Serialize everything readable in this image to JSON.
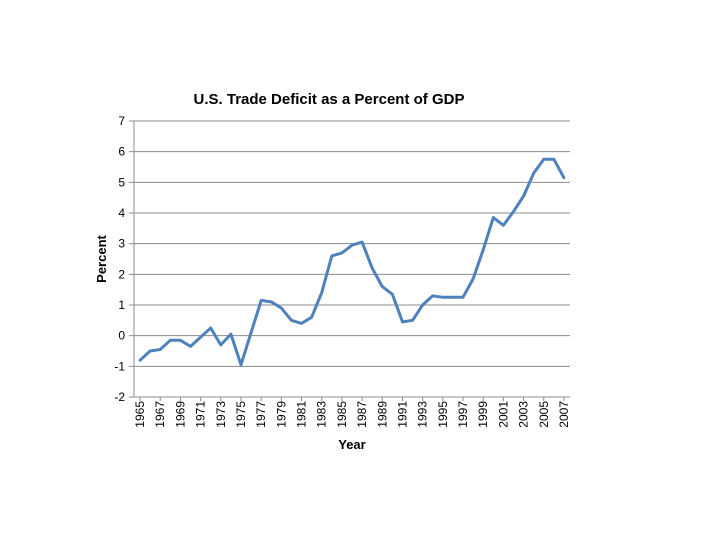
{
  "chart_data": {
    "type": "line",
    "title": "U.S. Trade Deficit as a Percent of GDP",
    "xlabel": "Year",
    "ylabel": "Percent",
    "ylim": [
      -2,
      7
    ],
    "yticks": [
      -2,
      -1,
      0,
      1,
      2,
      3,
      4,
      5,
      6,
      7
    ],
    "xticks": [
      1965,
      1967,
      1969,
      1971,
      1973,
      1975,
      1977,
      1979,
      1981,
      1983,
      1985,
      1987,
      1989,
      1991,
      1993,
      1995,
      1997,
      1999,
      2001,
      2003,
      2005,
      2007
    ],
    "grid": "horizontal",
    "line_color": "#4F81BD",
    "series": [
      {
        "x": [
          1965,
          1966,
          1967,
          1968,
          1969,
          1970,
          1971,
          1972,
          1973,
          1974,
          1975,
          1976,
          1977,
          1978,
          1979,
          1980,
          1981,
          1982,
          1983,
          1984,
          1985,
          1986,
          1987,
          1988,
          1989,
          1990,
          1991,
          1992,
          1993,
          1994,
          1995,
          1996,
          1997,
          1998,
          1999,
          2000,
          2001,
          2002,
          2003,
          2004,
          2005,
          2006,
          2007
        ],
        "values": [
          -0.8,
          -0.5,
          -0.45,
          -0.15,
          -0.15,
          -0.35,
          -0.05,
          0.25,
          -0.3,
          0.05,
          -0.95,
          0.1,
          1.15,
          1.1,
          0.9,
          0.5,
          0.4,
          0.6,
          1.4,
          2.6,
          2.7,
          2.95,
          3.05,
          2.2,
          1.6,
          1.35,
          0.45,
          0.5,
          1.0,
          1.3,
          1.25,
          1.25,
          1.25,
          1.85,
          2.8,
          3.85,
          3.6,
          4.05,
          4.55,
          5.3,
          5.75,
          5.75,
          5.15
        ]
      }
    ]
  }
}
